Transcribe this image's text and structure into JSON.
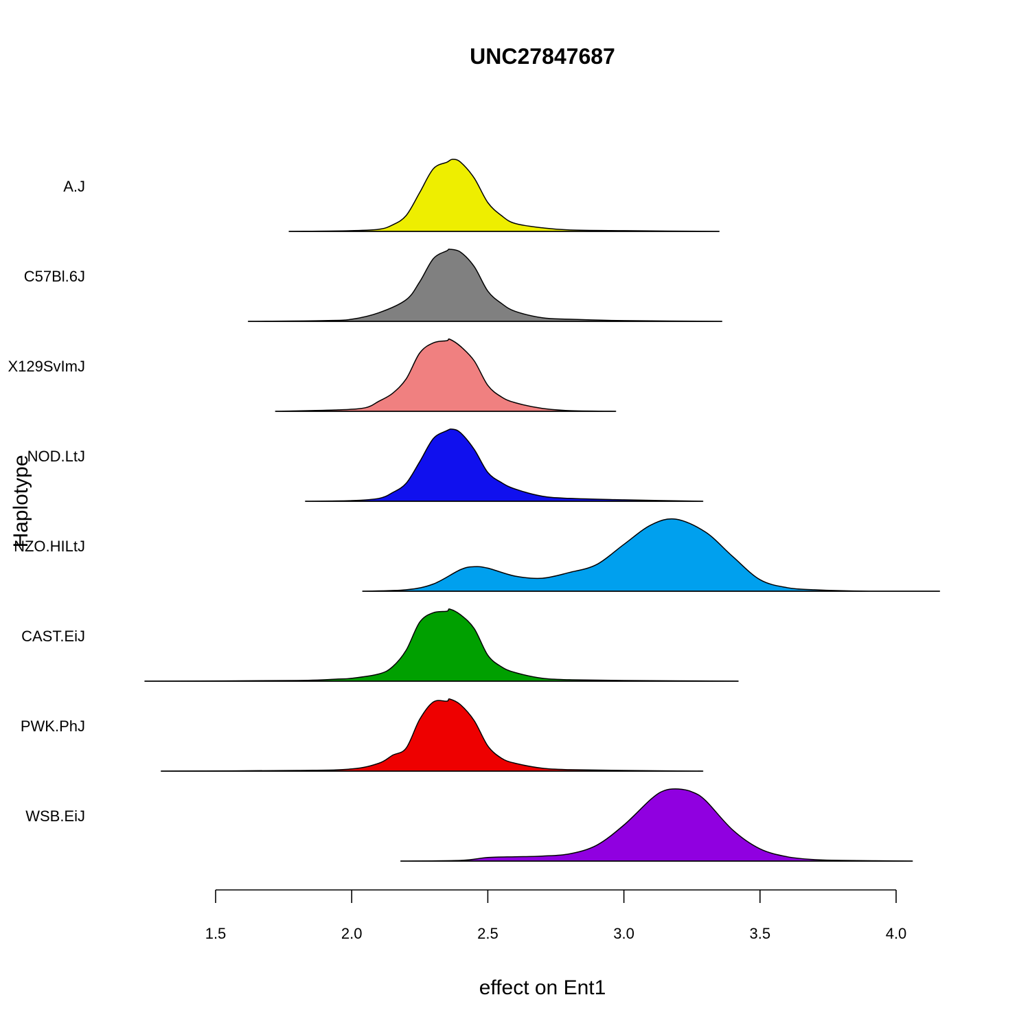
{
  "chart_data": {
    "type": "area",
    "title": "UNC27847687",
    "xlabel": "effect on Ent1",
    "ylabel": "Haplotype",
    "xlim": [
      1.5,
      4.0
    ],
    "xticks": [
      "1.5",
      "2.0",
      "2.5",
      "3.0",
      "3.5",
      "4.0"
    ],
    "grid": false,
    "legend": "none",
    "series": [
      {
        "name": "A.J",
        "color": "#eeee00",
        "range": [
          1.77,
          3.35
        ],
        "x": [
          1.77,
          2.0,
          2.1,
          2.15,
          2.2,
          2.25,
          2.3,
          2.35,
          2.37,
          2.4,
          2.45,
          2.5,
          2.55,
          2.6,
          2.7,
          2.8,
          3.0,
          3.35
        ],
        "density": [
          0.0,
          0.01,
          0.03,
          0.09,
          0.22,
          0.54,
          0.87,
          0.96,
          1.0,
          0.96,
          0.74,
          0.4,
          0.22,
          0.11,
          0.05,
          0.02,
          0.01,
          0.0
        ]
      },
      {
        "name": "C57Bl.6J",
        "color": "#808080",
        "range": [
          1.62,
          3.36
        ],
        "x": [
          1.62,
          1.9,
          2.0,
          2.1,
          2.2,
          2.25,
          2.3,
          2.35,
          2.36,
          2.4,
          2.45,
          2.5,
          2.55,
          2.6,
          2.7,
          2.8,
          3.0,
          3.36
        ],
        "density": [
          0.0,
          0.01,
          0.03,
          0.12,
          0.3,
          0.55,
          0.87,
          0.98,
          1.0,
          0.96,
          0.76,
          0.42,
          0.25,
          0.14,
          0.05,
          0.03,
          0.01,
          0.0
        ]
      },
      {
        "name": "X129SvImJ",
        "color": "#f08080",
        "range": [
          1.72,
          2.97
        ],
        "x": [
          1.72,
          1.95,
          2.05,
          2.1,
          2.15,
          2.2,
          2.25,
          2.3,
          2.35,
          2.36,
          2.4,
          2.45,
          2.5,
          2.55,
          2.6,
          2.7,
          2.8,
          2.97
        ],
        "density": [
          0.0,
          0.02,
          0.05,
          0.14,
          0.25,
          0.45,
          0.81,
          0.95,
          0.98,
          1.0,
          0.9,
          0.7,
          0.36,
          0.2,
          0.12,
          0.04,
          0.01,
          0.0
        ]
      },
      {
        "name": "NOD.LtJ",
        "color": "#1010ee",
        "range": [
          1.83,
          3.29
        ],
        "x": [
          1.83,
          2.0,
          2.1,
          2.15,
          2.2,
          2.25,
          2.3,
          2.35,
          2.37,
          2.4,
          2.45,
          2.5,
          2.55,
          2.6,
          2.7,
          2.8,
          3.0,
          3.29
        ],
        "density": [
          0.0,
          0.01,
          0.04,
          0.12,
          0.25,
          0.55,
          0.87,
          0.98,
          1.0,
          0.95,
          0.72,
          0.4,
          0.26,
          0.17,
          0.07,
          0.04,
          0.02,
          0.0
        ]
      },
      {
        "name": "NZO.HILtJ",
        "color": "#00a0ee",
        "range": [
          2.04,
          4.16
        ],
        "x": [
          2.04,
          2.2,
          2.3,
          2.4,
          2.45,
          2.5,
          2.6,
          2.7,
          2.8,
          2.9,
          3.0,
          3.1,
          3.19,
          3.3,
          3.4,
          3.5,
          3.6,
          3.7,
          3.9,
          4.16
        ],
        "density": [
          0.0,
          0.02,
          0.1,
          0.3,
          0.34,
          0.32,
          0.21,
          0.18,
          0.26,
          0.37,
          0.65,
          0.92,
          1.0,
          0.82,
          0.48,
          0.16,
          0.05,
          0.02,
          0.0,
          0.0
        ]
      },
      {
        "name": "CAST.EiJ",
        "color": "#00a000",
        "range": [
          1.24,
          3.42
        ],
        "x": [
          1.24,
          1.8,
          1.95,
          2.0,
          2.1,
          2.15,
          2.2,
          2.25,
          2.3,
          2.35,
          2.36,
          2.4,
          2.45,
          2.5,
          2.55,
          2.6,
          2.7,
          2.8,
          3.0,
          3.42
        ],
        "density": [
          0.0,
          0.01,
          0.03,
          0.04,
          0.1,
          0.2,
          0.43,
          0.82,
          0.95,
          0.97,
          1.0,
          0.92,
          0.73,
          0.36,
          0.2,
          0.12,
          0.04,
          0.02,
          0.01,
          0.0
        ]
      },
      {
        "name": "PWK.PhJ",
        "color": "#ee0000",
        "range": [
          1.3,
          3.29
        ],
        "x": [
          1.3,
          1.8,
          2.0,
          2.1,
          2.15,
          2.2,
          2.25,
          2.3,
          2.35,
          2.36,
          2.4,
          2.45,
          2.5,
          2.55,
          2.6,
          2.7,
          2.8,
          3.0,
          3.29
        ],
        "density": [
          0.0,
          0.01,
          0.03,
          0.11,
          0.22,
          0.32,
          0.72,
          0.96,
          0.97,
          1.0,
          0.92,
          0.7,
          0.35,
          0.18,
          0.11,
          0.04,
          0.02,
          0.01,
          0.0
        ]
      },
      {
        "name": "WSB.EiJ",
        "color": "#9000e0",
        "range": [
          2.18,
          4.06
        ],
        "x": [
          2.18,
          2.4,
          2.5,
          2.6,
          2.7,
          2.8,
          2.9,
          3.0,
          3.1,
          3.15,
          3.2,
          3.25,
          3.3,
          3.4,
          3.5,
          3.6,
          3.7,
          3.8,
          4.06
        ],
        "density": [
          0.0,
          0.01,
          0.05,
          0.06,
          0.07,
          0.1,
          0.22,
          0.5,
          0.86,
          0.98,
          1.0,
          0.96,
          0.84,
          0.43,
          0.17,
          0.06,
          0.02,
          0.01,
          0.0
        ]
      }
    ]
  }
}
